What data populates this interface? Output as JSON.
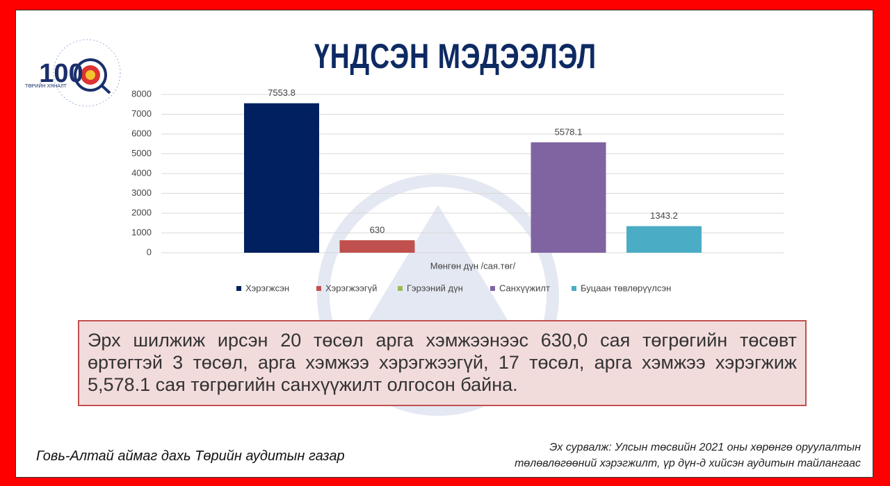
{
  "slide": {
    "title": "ҮНДСЭН МЭДЭЭЛЭЛ",
    "logo_number": "100",
    "logo_text": "ТӨРИЙН ХЯНАЛТ",
    "summary": "Эрх шилжиж ирсэн 20 төсөл арга хэмжээнээс 630,0 сая төгрөгийн төсөвт өртөгтэй 3 төсөл, арга хэмжээ хэрэгжээгүй, 17 төсөл, арга хэмжээ хэрэгжиж 5,578.1 сая төгрөгийн санхүүжилт олгосон байна.",
    "footer_left": "Говь-Алтай аймаг дахь Төрийн аудитын газар",
    "source_line1": "Эх сурвалж: Улсын төсвийн 2021 оны хөрөнгө оруулалтын",
    "source_line2": "төлөвлөгөөний хэрэгжилт, үр дүн-д хийсэн аудитын тайлангаас"
  },
  "chart_data": {
    "type": "bar",
    "x_label": "Мөнгөн дүн /сая.төг/",
    "categories": [
      null
    ],
    "series": [
      {
        "name": "Хэрэгжсэн",
        "color": "#002060",
        "values": [
          7553.8
        ]
      },
      {
        "name": "Хэрэгжээгүй",
        "color": "#c0504d",
        "values": [
          630
        ]
      },
      {
        "name": "Гэрээний дүн",
        "color": "#9bbb59",
        "values": [
          null
        ]
      },
      {
        "name": "Санхүүжилт",
        "color": "#8064a2",
        "values": [
          5578.1
        ]
      },
      {
        "name": "Буцаан төвлөрүүлсэн",
        "color": "#4bacc6",
        "values": [
          1343.2
        ]
      }
    ],
    "ylim": [
      0,
      8000
    ],
    "yticks": [
      0,
      1000,
      2000,
      3000,
      4000,
      5000,
      6000,
      7000,
      8000
    ],
    "grid": true,
    "legend": "bottom"
  }
}
